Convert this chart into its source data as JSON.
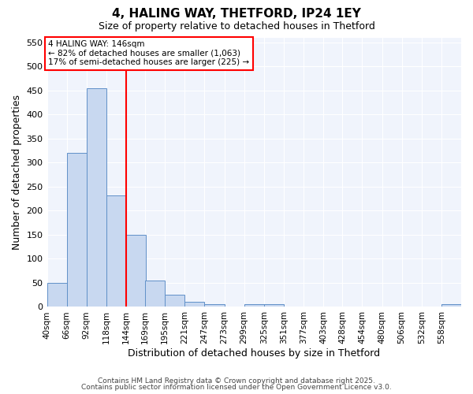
{
  "title": "4, HALING WAY, THETFORD, IP24 1EY",
  "subtitle": "Size of property relative to detached houses in Thetford",
  "xlabel": "Distribution of detached houses by size in Thetford",
  "ylabel": "Number of detached properties",
  "bar_color": "#c8d8f0",
  "bar_edge_color": "#6090c8",
  "background_color": "#ffffff",
  "plot_bg_color": "#f0f4fc",
  "grid_color": "#ffffff",
  "red_line_x": 144,
  "annotation_line1": "4 HALING WAY: 146sqm",
  "annotation_line2": "← 82% of detached houses are smaller (1,063)",
  "annotation_line3": "17% of semi-detached houses are larger (225) →",
  "bin_edges": [
    40,
    66,
    92,
    118,
    144,
    169,
    195,
    221,
    247,
    273,
    299,
    325,
    351,
    377,
    403,
    428,
    454,
    480,
    506,
    532,
    558
  ],
  "bar_heights": [
    50,
    320,
    455,
    232,
    150,
    55,
    25,
    10,
    5,
    0,
    5,
    5,
    0,
    0,
    0,
    0,
    0,
    0,
    0,
    0,
    5
  ],
  "bin_width": 26,
  "ylim": [
    0,
    560
  ],
  "yticks": [
    0,
    50,
    100,
    150,
    200,
    250,
    300,
    350,
    400,
    450,
    500,
    550
  ],
  "footer_line1": "Contains HM Land Registry data © Crown copyright and database right 2025.",
  "footer_line2": "Contains public sector information licensed under the Open Government Licence v3.0."
}
